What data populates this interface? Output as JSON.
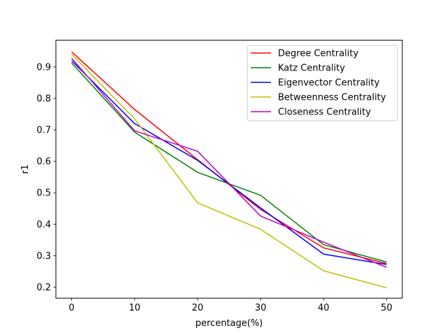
{
  "chart_data": {
    "type": "line",
    "title": "",
    "xlabel": "percentage(%)",
    "ylabel": "r1",
    "x": [
      0,
      10,
      20,
      30,
      40,
      50
    ],
    "xlim": [
      -2.5,
      52.5
    ],
    "ylim": [
      0.165,
      0.985
    ],
    "xticks": [
      0,
      10,
      20,
      30,
      40,
      50
    ],
    "yticks": [
      0.2,
      0.3,
      0.4,
      0.5,
      0.6,
      0.7,
      0.8,
      0.9
    ],
    "x_tick_labels": [
      "0",
      "10",
      "20",
      "30",
      "40",
      "50"
    ],
    "y_tick_labels": [
      "0.2",
      "0.3",
      "0.4",
      "0.5",
      "0.6",
      "0.7",
      "0.8",
      "0.9"
    ],
    "grid": false,
    "legend_position": "top-right",
    "series": [
      {
        "name": "Degree Centrality",
        "color": "#ff0000",
        "values": [
          0.948,
          0.765,
          0.605,
          0.447,
          0.325,
          0.275
        ]
      },
      {
        "name": "Katz Centrality",
        "color": "#008000",
        "values": [
          0.913,
          0.693,
          0.565,
          0.492,
          0.335,
          0.28
        ]
      },
      {
        "name": "Eigenvector Centrality",
        "color": "#0000ff",
        "values": [
          0.92,
          0.72,
          0.603,
          0.452,
          0.305,
          0.272
        ]
      },
      {
        "name": "Betweenness Centrality",
        "color": "#bfbf00",
        "values": [
          0.94,
          0.735,
          0.468,
          0.384,
          0.252,
          0.198
        ]
      },
      {
        "name": "Closeness Centrality",
        "color": "#bf00bf",
        "values": [
          0.928,
          0.697,
          0.632,
          0.426,
          0.343,
          0.263
        ]
      }
    ]
  }
}
